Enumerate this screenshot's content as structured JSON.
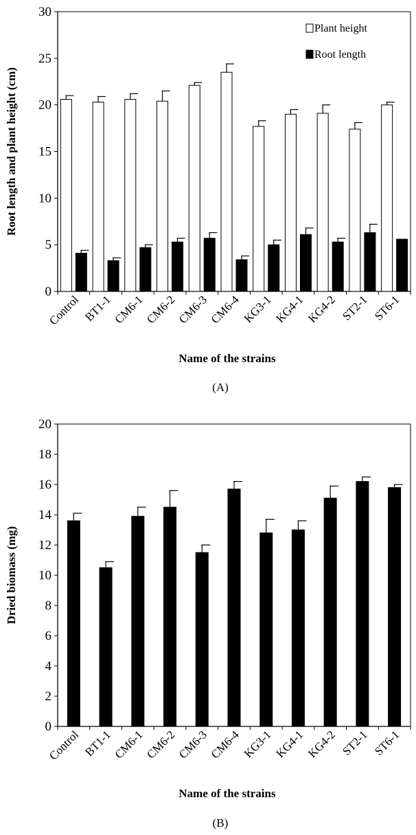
{
  "chart_data": [
    {
      "type": "bar",
      "panel_label": "(A)",
      "xlabel": "Name of the strains",
      "ylabel": "Root length and plant height (cm)",
      "ylim": [
        0,
        30
      ],
      "yticks": [
        0,
        5,
        10,
        15,
        20,
        25,
        30
      ],
      "categories": [
        "Control",
        "BT1-1",
        "CM6-1",
        "CM6-2",
        "CM6-3",
        "CM6-4",
        "KG3-1",
        "KG4-1",
        "KG4-2",
        "ST2-1",
        "ST6-1"
      ],
      "legend": {
        "position": "top-right"
      },
      "series": [
        {
          "name": "Plant height",
          "fill": "#ffffff",
          "values": [
            20.6,
            20.3,
            20.6,
            20.4,
            22.1,
            23.5,
            17.7,
            19.0,
            19.1,
            17.4,
            20.0
          ],
          "errors": [
            0.4,
            0.6,
            0.6,
            1.1,
            0.3,
            0.9,
            0.6,
            0.5,
            0.9,
            0.7,
            0.3
          ]
        },
        {
          "name": "Root length",
          "fill": "#000000",
          "values": [
            4.1,
            3.3,
            4.7,
            5.3,
            5.7,
            3.4,
            5.0,
            6.1,
            5.3,
            6.3,
            5.6
          ],
          "errors": [
            0.3,
            0.3,
            0.3,
            0.4,
            0.6,
            0.4,
            0.5,
            0.7,
            0.4,
            0.9,
            0.0
          ]
        }
      ]
    },
    {
      "type": "bar",
      "panel_label": "(B)",
      "xlabel": "Name of the strains",
      "ylabel": "Dried biomass (mg)",
      "ylim": [
        0,
        20
      ],
      "yticks": [
        0,
        2,
        4,
        6,
        8,
        10,
        12,
        14,
        16,
        18,
        20
      ],
      "categories": [
        "Control",
        "BT1-1",
        "CM6-1",
        "CM6-2",
        "CM6-3",
        "CM6-4",
        "KG3-1",
        "KG4-1",
        "KG4-2",
        "ST2-1",
        "ST6-1"
      ],
      "series": [
        {
          "fill": "#000000",
          "values": [
            13.6,
            10.5,
            13.9,
            14.5,
            11.5,
            15.7,
            12.8,
            13.0,
            15.1,
            16.2,
            15.8
          ],
          "errors": [
            0.5,
            0.4,
            0.6,
            1.1,
            0.5,
            0.5,
            0.9,
            0.6,
            0.8,
            0.3,
            0.2
          ]
        }
      ],
      "grid": false
    }
  ]
}
